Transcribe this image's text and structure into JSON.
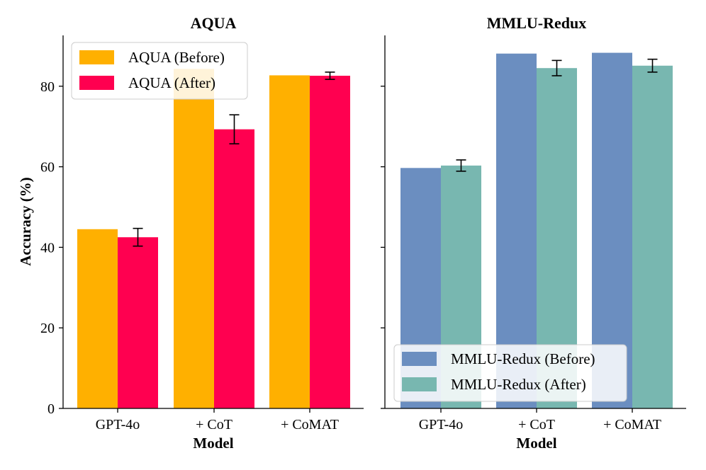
{
  "shared": {
    "ylabel": "Accuracy (%)",
    "xlabel": "Model",
    "yticks": [
      "0",
      "20",
      "40",
      "60",
      "80"
    ]
  },
  "chart_data": [
    {
      "type": "bar",
      "title": "AQUA",
      "xlabel": "Model",
      "ylabel": "Accuracy (%)",
      "categories": [
        "GPT-4o",
        "+ CoT",
        "+ CoMAT"
      ],
      "ylim": [
        0,
        92
      ],
      "legend_position": "top-left",
      "series": [
        {
          "name": "AQUA (Before)",
          "color": "#FFB000",
          "values": [
            44.5,
            84.3,
            82.7
          ],
          "errors": [
            null,
            null,
            null
          ]
        },
        {
          "name": "AQUA (After)",
          "color": "#FF0050",
          "values": [
            42.5,
            69.3,
            82.6
          ],
          "errors": [
            2.2,
            3.6,
            0.9
          ]
        }
      ]
    },
    {
      "type": "bar",
      "title": "MMLU-Redux",
      "xlabel": "Model",
      "ylabel": "",
      "categories": [
        "GPT-4o",
        "+ CoT",
        "+ CoMAT"
      ],
      "ylim": [
        0,
        92
      ],
      "legend_position": "bottom-left",
      "series": [
        {
          "name": "MMLU-Redux (Before)",
          "color": "#6B8EC0",
          "values": [
            59.7,
            88.1,
            88.3
          ],
          "errors": [
            null,
            null,
            null
          ]
        },
        {
          "name": "MMLU-Redux (After)",
          "color": "#78B7B0",
          "values": [
            60.3,
            84.5,
            85.1
          ],
          "errors": [
            1.4,
            1.9,
            1.6
          ]
        }
      ]
    }
  ]
}
